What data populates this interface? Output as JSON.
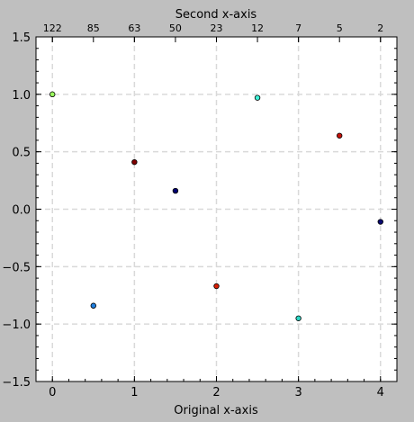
{
  "chart_data": {
    "type": "scatter",
    "xlabel": "Original x-axis",
    "x2label": "Second x-axis",
    "xlim": [
      -0.2,
      4.2
    ],
    "ylim": [
      -1.5,
      1.5
    ],
    "x_ticks": [
      0,
      1,
      2,
      3,
      4
    ],
    "x_tick_labels": [
      "0",
      "1",
      "2",
      "3",
      "4"
    ],
    "y_ticks": [
      -1.5,
      -1.0,
      -0.5,
      0.0,
      0.5,
      1.0,
      1.5
    ],
    "y_tick_labels": [
      "−1.5",
      "−1.0",
      "−0.5",
      "0.0",
      "0.5",
      "1.0",
      "1.5"
    ],
    "x2_ticks": [
      0,
      0.5,
      1,
      1.5,
      2,
      2.5,
      3,
      3.5,
      4
    ],
    "x2_tick_labels": [
      "122",
      "85",
      "63",
      "50",
      "23",
      "12",
      "7",
      "5",
      "2"
    ],
    "grid": true,
    "points": [
      {
        "x": 0.0,
        "y": 1.0,
        "color": "#9bff5e"
      },
      {
        "x": 0.5,
        "y": -0.84,
        "color": "#1f7fe0"
      },
      {
        "x": 1.0,
        "y": 0.41,
        "color": "#800000"
      },
      {
        "x": 1.5,
        "y": 0.16,
        "color": "#000070"
      },
      {
        "x": 2.0,
        "y": -0.67,
        "color": "#d81e05"
      },
      {
        "x": 2.5,
        "y": 0.97,
        "color": "#3ff2d8"
      },
      {
        "x": 3.0,
        "y": -0.95,
        "color": "#2dd6c5"
      },
      {
        "x": 3.5,
        "y": 0.64,
        "color": "#c4120a"
      },
      {
        "x": 4.0,
        "y": -0.11,
        "color": "#0a0a70"
      }
    ]
  },
  "colors": {
    "figure_bg": "#bfbfbf",
    "axes_bg": "#ffffff",
    "grid": "#d9d9d9",
    "axis": "#000000"
  }
}
